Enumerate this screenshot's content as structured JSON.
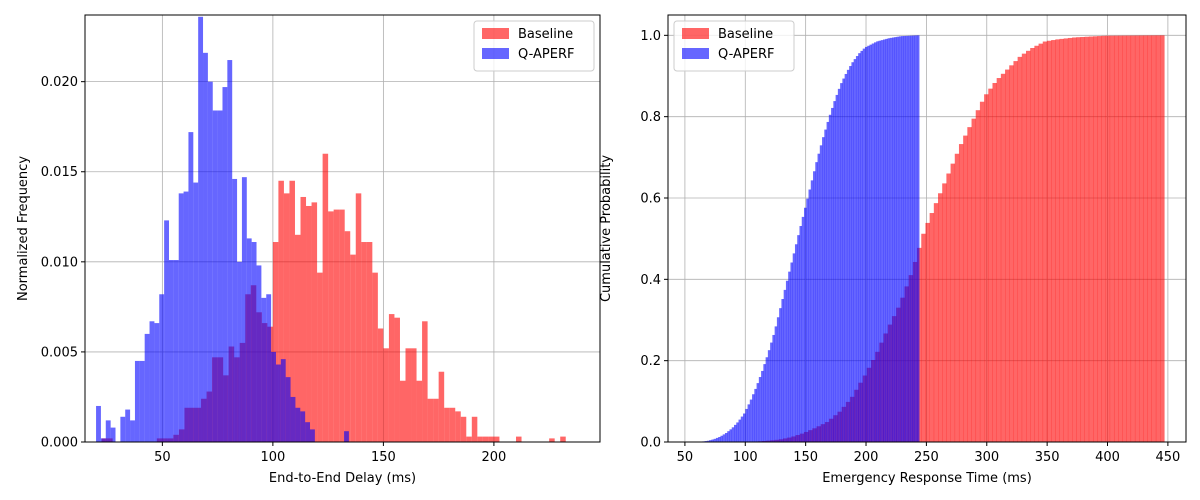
{
  "chart_data": [
    {
      "type": "histogram",
      "xlabel": "End-to-End Delay (ms)",
      "ylabel": "Normalized Frequency",
      "xlim": [
        15,
        248
      ],
      "ylim": [
        0,
        0.0237
      ],
      "xticks": [
        50,
        100,
        150,
        200
      ],
      "yticks": [
        0.0,
        0.005,
        0.01,
        0.015,
        0.02
      ],
      "ytick_labels": [
        "0.000",
        "0.005",
        "0.010",
        "0.015",
        "0.020"
      ],
      "grid": true,
      "legend_position": "upper right",
      "bar_opacity": 0.6,
      "series": [
        {
          "name": "Baseline",
          "color": "#ff0000",
          "bin_start": 22.5,
          "bin_width": 2.5,
          "values": [
            0.0002,
            0.0002,
            0,
            0,
            0,
            0,
            0,
            0,
            0,
            0,
            0.0002,
            0.0002,
            0.0002,
            0.0004,
            0.0007,
            0.0019,
            0.0019,
            0.0019,
            0.0024,
            0.0028,
            0.0047,
            0.0047,
            0.0037,
            0.0053,
            0.0047,
            0.0055,
            0.0082,
            0.0087,
            0.0072,
            0.0066,
            0.0064,
            0.0111,
            0.0145,
            0.0138,
            0.0145,
            0.0115,
            0.0136,
            0.0131,
            0.0133,
            0.0094,
            0.016,
            0.0128,
            0.0129,
            0.0129,
            0.0117,
            0.0104,
            0.0066,
            0.0062,
            0.0071,
            0.0065,
            0.0047,
            0.0052,
            0.0034,
            0.0037,
            0.0034,
            0.0023,
            0.0024,
            0.0022,
            0.0014,
            0.0014,
            0.0014,
            0.0011,
            0.0011,
            0.0011,
            0.0003,
            0.0003,
            0.0003,
            0,
            0,
            0,
            0.0002,
            0,
            0,
            0,
            0,
            0,
            0,
            0,
            0,
            0,
            0,
            0.0002
          ],
          "overrides": {
            "137.5": 0.0138,
            "140": 0.0111,
            "142.5": 0.0111,
            "145": 0.0094,
            "147.5": 0.0063,
            "150": 0.0052,
            "152.5": 0.0071,
            "155": 0.0069,
            "157.5": 0.0034,
            "160": 0.0052,
            "162.5": 0.0052,
            "165": 0.0034,
            "167.5": 0.0067,
            "170": 0.0024,
            "172.5": 0.0024,
            "175": 0.0039,
            "177.5": 0.0019,
            "180": 0.0019,
            "182.5": 0.0017,
            "185": 0.0014,
            "187.5": 0.0003,
            "190": 0.0014,
            "192.5": 0.0003,
            "195": 0.0003,
            "197.5": 0.0003,
            "200": 0.0003,
            "205": 0,
            "210": 0.0003,
            "230": 0.0003
          }
        },
        {
          "name": "Q-APERF",
          "color": "#0000ff",
          "bin_start": 20,
          "bin_width": 2.2,
          "values": [
            0.002,
            0.0002,
            0.0012,
            0.0008,
            0,
            0.0014,
            0.0018,
            0.0012,
            0.0045,
            0.0045,
            0.006,
            0.0067,
            0.0066,
            0.0082,
            0.0123,
            0.0101,
            0.0101,
            0.0138,
            0.0139,
            0.0172,
            0.0144,
            0.0236,
            0.0216,
            0.02,
            0.0184,
            0.0184,
            0.0197,
            0.0212,
            0.0146,
            0.01,
            0.0147,
            0.0113,
            0.0111,
            0.0098,
            0.008,
            0.0082,
            0.005,
            0.0043,
            0.0046,
            0.0036,
            0.0025,
            0.0019,
            0.0017,
            0.0011,
            0.0007,
            0,
            0,
            0,
            0,
            0,
            0,
            0.0006
          ]
        }
      ]
    },
    {
      "type": "cumulative_histogram",
      "xlabel": "Emergency Response Time (ms)",
      "ylabel": "Cumulative Probability",
      "xlim": [
        36,
        465
      ],
      "ylim": [
        0,
        1.05
      ],
      "xticks": [
        50,
        100,
        150,
        200,
        250,
        300,
        350,
        400,
        450
      ],
      "yticks": [
        0.0,
        0.2,
        0.4,
        0.6,
        0.8,
        1.0
      ],
      "ytick_labels": [
        "0.0",
        "0.2",
        "0.4",
        "0.6",
        "0.8",
        "1.0"
      ],
      "grid": true,
      "legend_position": "upper left",
      "bar_opacity": 0.6,
      "series": [
        {
          "name": "Baseline",
          "color": "#ff0000",
          "x_range": [
            100,
            447
          ],
          "cdf_points": [
            [
              100,
              0.0
            ],
            [
              110,
              0.001
            ],
            [
              120,
              0.003
            ],
            [
              130,
              0.006
            ],
            [
              140,
              0.012
            ],
            [
              150,
              0.022
            ],
            [
              160,
              0.035
            ],
            [
              170,
              0.05
            ],
            [
              180,
              0.075
            ],
            [
              190,
              0.11
            ],
            [
              200,
              0.16
            ],
            [
              210,
              0.215
            ],
            [
              220,
              0.28
            ],
            [
              230,
              0.34
            ],
            [
              240,
              0.42
            ],
            [
              245,
              0.47
            ],
            [
              250,
              0.52
            ],
            [
              260,
              0.59
            ],
            [
              270,
              0.66
            ],
            [
              280,
              0.73
            ],
            [
              290,
              0.79
            ],
            [
              300,
              0.85
            ],
            [
              310,
              0.89
            ],
            [
              320,
              0.92
            ],
            [
              330,
              0.95
            ],
            [
              340,
              0.97
            ],
            [
              350,
              0.985
            ],
            [
              360,
              0.99
            ],
            [
              375,
              0.995
            ],
            [
              400,
              0.999
            ],
            [
              447,
              1.0
            ]
          ]
        },
        {
          "name": "Q-APERF",
          "color": "#0000ff",
          "x_range": [
            57,
            244
          ],
          "cdf_points": [
            [
              57,
              0.0
            ],
            [
              65,
              0.001
            ],
            [
              70,
              0.003
            ],
            [
              75,
              0.007
            ],
            [
              80,
              0.013
            ],
            [
              85,
              0.022
            ],
            [
              90,
              0.034
            ],
            [
              95,
              0.05
            ],
            [
              100,
              0.07
            ],
            [
              105,
              0.1
            ],
            [
              110,
              0.135
            ],
            [
              115,
              0.175
            ],
            [
              120,
              0.22
            ],
            [
              125,
              0.27
            ],
            [
              130,
              0.33
            ],
            [
              135,
              0.39
            ],
            [
              140,
              0.45
            ],
            [
              145,
              0.51
            ],
            [
              150,
              0.57
            ],
            [
              155,
              0.63
            ],
            [
              160,
              0.69
            ],
            [
              165,
              0.745
            ],
            [
              170,
              0.795
            ],
            [
              175,
              0.84
            ],
            [
              180,
              0.88
            ],
            [
              185,
              0.91
            ],
            [
              190,
              0.935
            ],
            [
              195,
              0.955
            ],
            [
              200,
              0.97
            ],
            [
              210,
              0.985
            ],
            [
              220,
              0.993
            ],
            [
              230,
              0.998
            ],
            [
              244,
              1.0
            ]
          ]
        }
      ]
    }
  ]
}
